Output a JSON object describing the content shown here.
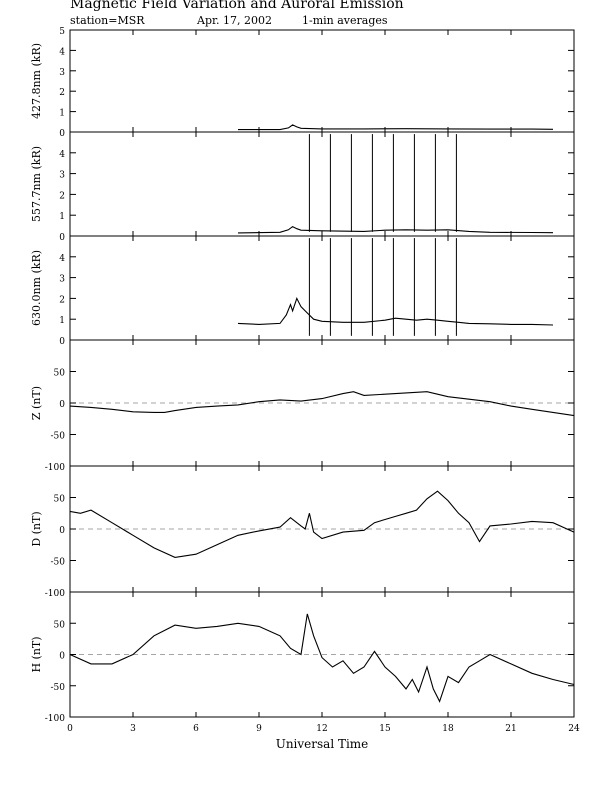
{
  "header": {
    "title": "Magnetic Field Variation and Auroral Emission",
    "station": "station=MSR",
    "date": "Apr. 17, 2002",
    "averaging": "1-min averages"
  },
  "chart_data": [
    {
      "type": "line",
      "ylabel": "427.8nm (kR)",
      "ylim": [
        0,
        5
      ],
      "yticks": [
        0,
        1,
        2,
        3,
        4,
        5
      ],
      "xlim": [
        0,
        24
      ],
      "series": [
        {
          "x": [
            8.0,
            10.0,
            10.4,
            10.6,
            10.8,
            11.0,
            12.0,
            14.0,
            16.0,
            18.0,
            20.0,
            22.0,
            23.0
          ],
          "y": [
            0.12,
            0.12,
            0.2,
            0.35,
            0.25,
            0.18,
            0.15,
            0.15,
            0.16,
            0.15,
            0.14,
            0.14,
            0.13
          ]
        }
      ]
    },
    {
      "type": "line",
      "ylabel": "557.7nm (kR)",
      "ylim": [
        0,
        5
      ],
      "yticks": [
        0,
        1,
        2,
        3,
        4
      ],
      "xlim": [
        0,
        24
      ],
      "spikes": [
        11.4,
        12.4,
        13.4,
        14.4,
        15.4,
        16.4,
        17.4,
        18.4
      ],
      "spike_top": 4.9,
      "series": [
        {
          "x": [
            8.0,
            10.0,
            10.4,
            10.6,
            10.8,
            11.0,
            12.0,
            14.0,
            15.0,
            16.0,
            17.0,
            18.0,
            19.0,
            20.0,
            22.0,
            23.0
          ],
          "y": [
            0.15,
            0.18,
            0.3,
            0.45,
            0.35,
            0.28,
            0.25,
            0.22,
            0.28,
            0.3,
            0.28,
            0.3,
            0.22,
            0.18,
            0.17,
            0.16
          ]
        }
      ]
    },
    {
      "type": "line",
      "ylabel": "630.0nm (kR)",
      "ylim": [
        0,
        5
      ],
      "yticks": [
        0,
        1,
        2,
        3,
        4
      ],
      "xlim": [
        0,
        24
      ],
      "spikes": [
        11.4,
        12.4,
        13.4,
        14.4,
        15.4,
        16.4,
        17.4,
        18.4
      ],
      "spike_top": 4.9,
      "series": [
        {
          "x": [
            8.0,
            9.0,
            10.0,
            10.3,
            10.5,
            10.6,
            10.8,
            11.0,
            11.3,
            11.6,
            12.0,
            13.0,
            14.0,
            15.0,
            15.5,
            16.0,
            16.5,
            17.0,
            17.5,
            18.0,
            18.5,
            19.0,
            20.0,
            21.0,
            22.0,
            23.0
          ],
          "y": [
            0.8,
            0.75,
            0.8,
            1.2,
            1.7,
            1.4,
            2.0,
            1.6,
            1.3,
            1.0,
            0.9,
            0.85,
            0.85,
            0.95,
            1.05,
            1.0,
            0.95,
            1.0,
            0.95,
            0.9,
            0.85,
            0.8,
            0.78,
            0.75,
            0.75,
            0.72
          ]
        }
      ]
    },
    {
      "type": "line",
      "ylabel": "Z (nT)",
      "ylim": [
        -100,
        100
      ],
      "yticks": [
        -100,
        -50,
        0,
        50
      ],
      "xlim": [
        0,
        24
      ],
      "zero_line": true,
      "series": [
        {
          "x": [
            0,
            1,
            2,
            3,
            4,
            4.5,
            5,
            6,
            7,
            8,
            9,
            10,
            11,
            12,
            13,
            13.5,
            14,
            15,
            16,
            17,
            17.5,
            18,
            19,
            20,
            21,
            22,
            23,
            24
          ],
          "y": [
            -5,
            -7,
            -10,
            -14,
            -15,
            -15,
            -12,
            -7,
            -5,
            -3,
            2,
            5,
            3,
            7,
            15,
            18,
            12,
            14,
            16,
            18,
            14,
            10,
            6,
            2,
            -5,
            -10,
            -15,
            -20
          ]
        }
      ]
    },
    {
      "type": "line",
      "ylabel": "D (nT)",
      "ylim": [
        -100,
        100
      ],
      "yticks": [
        -100,
        -50,
        0,
        50
      ],
      "xlim": [
        0,
        24
      ],
      "zero_line": true,
      "series": [
        {
          "x": [
            0,
            0.5,
            1,
            2,
            3,
            4,
            5,
            6,
            7,
            8,
            9,
            10,
            10.5,
            11,
            11.2,
            11.4,
            11.6,
            12,
            13,
            14,
            14.5,
            15,
            15.5,
            16,
            16.5,
            17,
            17.5,
            18,
            18.5,
            19,
            19.5,
            20,
            21,
            22,
            23,
            24
          ],
          "y": [
            28,
            25,
            30,
            10,
            -10,
            -30,
            -45,
            -40,
            -25,
            -10,
            -3,
            3,
            18,
            5,
            0,
            25,
            -5,
            -15,
            -5,
            -2,
            10,
            15,
            20,
            25,
            30,
            48,
            60,
            45,
            25,
            10,
            -20,
            5,
            8,
            12,
            10,
            -5
          ]
        }
      ]
    },
    {
      "type": "line",
      "ylabel": "H (nT)",
      "ylim": [
        -100,
        100
      ],
      "yticks": [
        -100,
        -50,
        0,
        50
      ],
      "xlim": [
        0,
        24
      ],
      "xticks": [
        0,
        3,
        6,
        9,
        12,
        15,
        18,
        21,
        24
      ],
      "xlabel": "Universal Time",
      "zero_line": true,
      "series": [
        {
          "x": [
            0,
            1,
            2,
            3,
            4,
            5,
            6,
            7,
            8,
            9,
            10,
            10.5,
            11,
            11.3,
            11.6,
            12,
            12.5,
            13,
            13.5,
            14,
            14.5,
            15,
            15.5,
            16,
            16.3,
            16.6,
            17,
            17.3,
            17.6,
            18,
            18.5,
            19,
            19.5,
            20,
            21,
            22,
            23,
            24
          ],
          "y": [
            0,
            -15,
            -15,
            0,
            30,
            47,
            42,
            45,
            50,
            45,
            30,
            10,
            0,
            65,
            30,
            -5,
            -20,
            -10,
            -30,
            -20,
            5,
            -20,
            -35,
            -55,
            -40,
            -60,
            -20,
            -55,
            -75,
            -35,
            -45,
            -20,
            -10,
            0,
            -15,
            -30,
            -40,
            -48
          ]
        }
      ]
    }
  ],
  "x_axis": {
    "ticks": [
      "0",
      "3",
      "6",
      "9",
      "12",
      "15",
      "18",
      "21",
      "24"
    ],
    "label": "Universal Time"
  }
}
